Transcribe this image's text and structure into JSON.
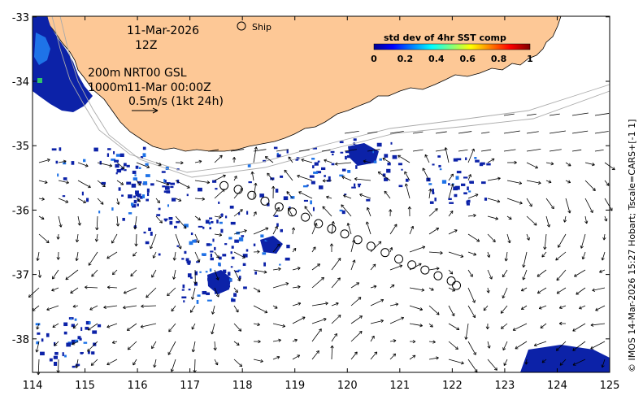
{
  "map": {
    "date_label": "11-Mar-2026",
    "hour_label": "12Z",
    "ship_legend": "Ship",
    "depth_200": "200m",
    "depth_1000": "1000m",
    "product_label": "NRT00 GSL",
    "vector_time_label": "11-Mar 00:00Z",
    "scale_label": "0.5m/s (1kt 24h)",
    "side_credit": "© IMOS 14-Mar-2026 15:27 Hobart; Tscale=CARS+[-1 1]",
    "x_ticks": [
      "114",
      "115",
      "116",
      "117",
      "118",
      "119",
      "120",
      "121",
      "122",
      "123",
      "124",
      "125"
    ],
    "y_ticks": [
      "-33",
      "-34",
      "-35",
      "-36",
      "-37",
      "-38"
    ],
    "colorbar": {
      "title": "std dev of 4hr SST comp",
      "ticks": [
        "0",
        "0.2",
        "0.4",
        "0.6",
        "0.8",
        "1"
      ]
    },
    "ship_track": [
      [
        117.65,
        -35.62
      ],
      [
        117.92,
        -35.68
      ],
      [
        118.18,
        -35.77
      ],
      [
        118.43,
        -35.86
      ],
      [
        118.7,
        -35.95
      ],
      [
        118.95,
        -36.03
      ],
      [
        119.2,
        -36.11
      ],
      [
        119.45,
        -36.21
      ],
      [
        119.7,
        -36.29
      ],
      [
        119.95,
        -36.37
      ],
      [
        120.2,
        -36.46
      ],
      [
        120.45,
        -36.56
      ],
      [
        120.72,
        -36.66
      ],
      [
        120.98,
        -36.76
      ],
      [
        121.23,
        -36.85
      ],
      [
        121.48,
        -36.93
      ],
      [
        121.73,
        -37.02
      ],
      [
        121.98,
        -37.1
      ],
      [
        122.08,
        -37.17
      ]
    ],
    "colors": {
      "land": "#fdc896",
      "ocean": "#ffffff",
      "data_low": "#0a1d9e",
      "data_mid": "#1e66e6"
    }
  }
}
